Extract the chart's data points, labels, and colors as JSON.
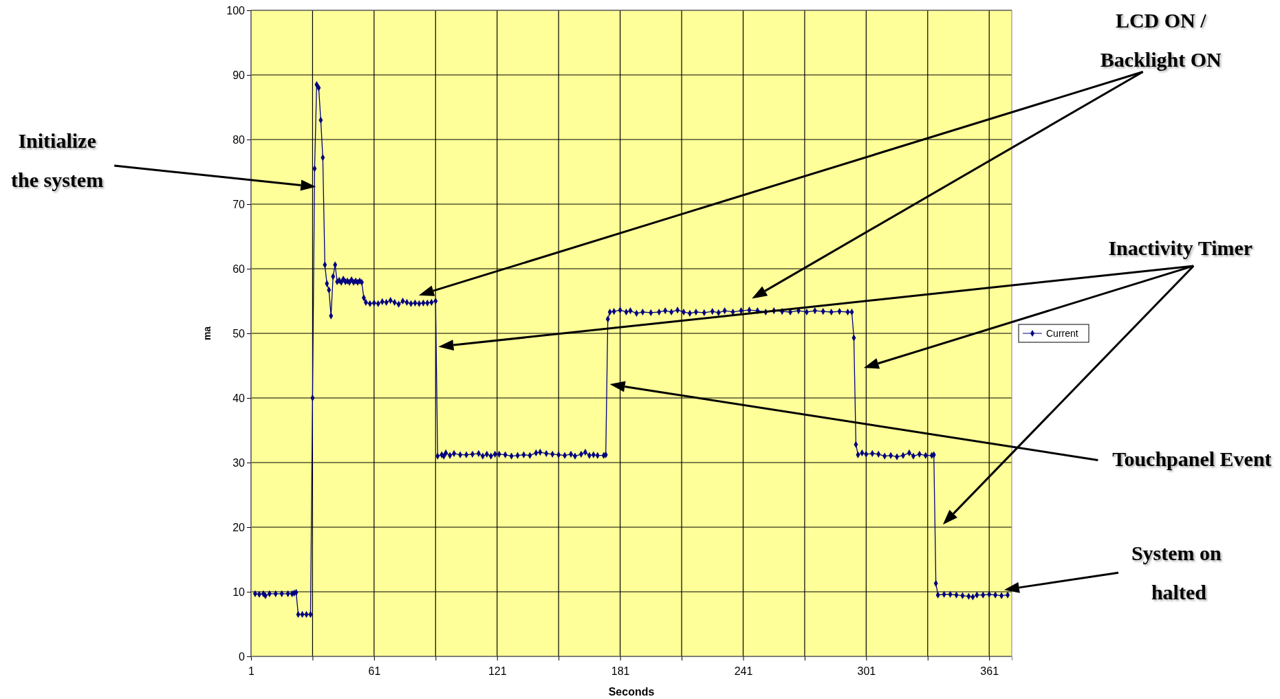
{
  "chart_data": {
    "type": "line",
    "xlabel": "Seconds",
    "ylabel": "ma",
    "x": [
      3,
      5,
      7,
      8,
      10,
      13,
      16,
      19,
      21,
      22,
      23,
      24,
      26,
      28,
      30,
      31,
      32,
      33,
      34,
      35,
      36,
      37,
      38,
      39,
      40,
      41,
      42,
      43,
      44,
      45,
      46,
      47,
      48,
      49,
      50,
      51,
      52,
      53,
      54,
      55,
      56,
      57,
      59,
      61,
      63,
      65,
      67,
      69,
      71,
      73,
      75,
      77,
      79,
      81,
      83,
      85,
      87,
      89,
      91,
      92,
      94,
      95,
      96,
      98,
      100,
      103,
      106,
      109,
      112,
      114,
      116,
      118,
      120,
      122,
      125,
      128,
      131,
      134,
      137,
      140,
      142,
      145,
      148,
      151,
      154,
      157,
      159,
      162,
      164,
      166,
      168,
      170,
      173,
      174,
      175,
      176,
      178,
      181,
      184,
      186,
      189,
      192,
      196,
      200,
      203,
      206,
      209,
      212,
      215,
      218,
      222,
      226,
      229,
      232,
      236,
      240,
      244,
      248,
      252,
      256,
      260,
      264,
      268,
      272,
      276,
      280,
      284,
      288,
      292,
      294,
      295,
      296,
      297,
      299,
      301,
      304,
      307,
      310,
      313,
      316,
      319,
      322,
      324,
      327,
      330,
      333,
      334,
      335,
      336,
      339,
      342,
      345,
      348,
      351,
      353,
      355,
      358,
      361,
      364,
      367,
      370
    ],
    "series": [
      {
        "name": "Current",
        "color": "#000080",
        "values": [
          9.7,
          9.6,
          9.7,
          9.4,
          9.7,
          9.7,
          9.7,
          9.7,
          9.7,
          9.8,
          9.9,
          6.5,
          6.5,
          6.5,
          6.5,
          40,
          75.5,
          88.5,
          88,
          83,
          77.2,
          60.6,
          57.7,
          56.7,
          52.7,
          58.8,
          60.6,
          58,
          58.2,
          57.9,
          58.4,
          58,
          58.1,
          57.9,
          58.3,
          57.9,
          58.1,
          57.9,
          58.1,
          57.9,
          55.5,
          54.8,
          54.6,
          54.7,
          54.6,
          54.9,
          54.8,
          55.1,
          54.8,
          54.5,
          55,
          54.8,
          54.6,
          54.7,
          54.6,
          54.7,
          54.7,
          54.8,
          55,
          31,
          31.2,
          31,
          31.5,
          31.1,
          31.4,
          31.2,
          31.2,
          31.3,
          31.4,
          31,
          31.3,
          31,
          31.3,
          31.3,
          31.2,
          31,
          31.1,
          31.2,
          31.1,
          31.5,
          31.6,
          31.4,
          31.3,
          31.2,
          31.1,
          31.3,
          31,
          31.3,
          31.6,
          31.1,
          31.2,
          31.1,
          31.1,
          31.2,
          52.2,
          53.3,
          53.4,
          53.6,
          53.3,
          53.5,
          53.1,
          53.3,
          53.2,
          53.3,
          53.5,
          53.3,
          53.6,
          53.3,
          53.1,
          53.3,
          53.2,
          53.4,
          53.2,
          53.5,
          53.3,
          53.5,
          53.6,
          53.5,
          53.3,
          53.5,
          53.4,
          53.3,
          53.5,
          53.3,
          53.5,
          53.4,
          53.3,
          53.4,
          53.3,
          53.3,
          49.3,
          32.8,
          31.2,
          31.5,
          31.3,
          31.4,
          31.3,
          31,
          31.1,
          30.9,
          31.1,
          31.5,
          31,
          31.3,
          31.1,
          31.1,
          31.2,
          11.3,
          9.5,
          9.6,
          9.6,
          9.5,
          9.4,
          9.3,
          9.2,
          9.5,
          9.5,
          9.6,
          9.5,
          9.4,
          9.5
        ]
      }
    ],
    "xlim": [
      1,
      372
    ],
    "xticks": [
      1,
      {
        "value": 31,
        "label": null
      },
      61,
      {
        "value": 91,
        "label": null
      },
      121,
      {
        "value": 151,
        "label": null
      },
      181,
      {
        "value": 211,
        "label": null
      },
      241,
      {
        "value": 271,
        "label": null
      },
      301,
      {
        "value": 331,
        "label": null
      },
      361
    ],
    "ylim": [
      0,
      100
    ],
    "yticks": [
      0,
      10,
      20,
      30,
      40,
      50,
      60,
      70,
      80,
      90,
      100
    ],
    "grid": true,
    "legend": "right",
    "marker": "diamond",
    "line_style": "solid",
    "annotations": [
      "Initialize the system",
      "LCD ON / Backlight ON",
      "Inactivity Timer",
      "Touchpanel Event",
      "System on halted"
    ]
  }
}
